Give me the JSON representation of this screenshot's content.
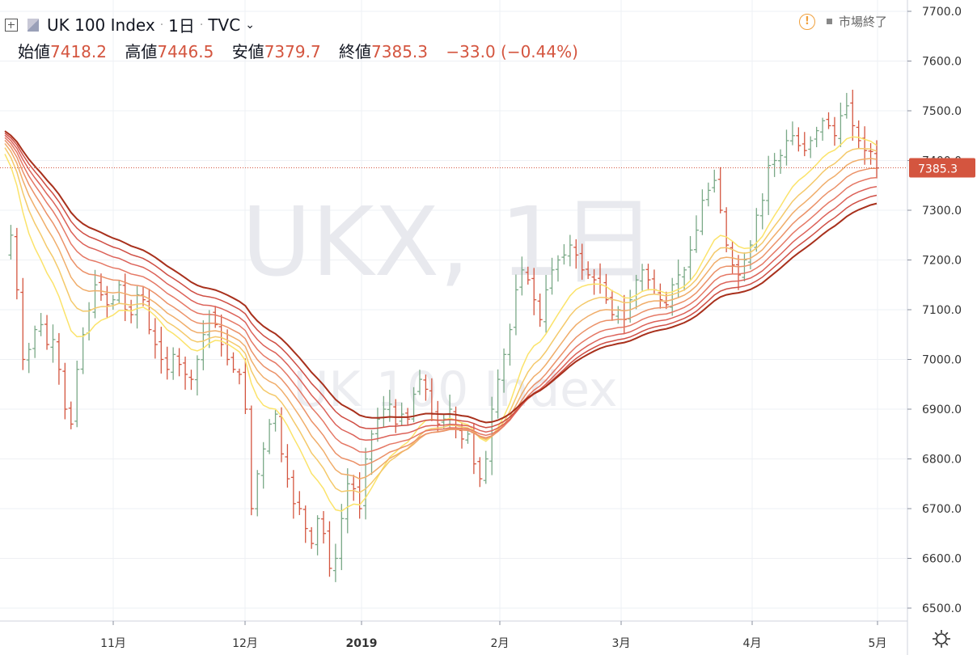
{
  "header": {
    "symbol": "UK 100 Index",
    "interval": "1日",
    "source": "TVC",
    "status": "市場終了",
    "open_label": "始値",
    "open": "7418.2",
    "high_label": "高値",
    "high": "7446.5",
    "low_label": "安値",
    "low": "7379.7",
    "close_label": "終値",
    "close": "7385.3",
    "change": "−33.0 (−0.44%)"
  },
  "watermark": {
    "main": "UKX, 1日",
    "sub": "UK 100 Index"
  },
  "colors": {
    "up": "#7aa987",
    "down": "#d4553f",
    "grid": "#eef0f4",
    "ribbon": [
      "#fbe36a",
      "#f4c96a",
      "#f0ad6a",
      "#eb9168",
      "#e57865",
      "#dc6259",
      "#cf4e44",
      "#a8301c"
    ]
  },
  "chart_data": {
    "type": "candlestick",
    "ylim": [
      6470,
      7720
    ],
    "y_ticks": [
      "7700.0",
      "7600.0",
      "7500.0",
      "7400.0",
      "7300.0",
      "7200.0",
      "7100.0",
      "7000.0",
      "6900.0",
      "6800.0",
      "6700.0",
      "6600.0",
      "6500.0"
    ],
    "x_ticks": [
      "11月",
      "12月",
      "2019",
      "2月",
      "3月",
      "4月",
      "5月"
    ],
    "last_price": "7385.3",
    "last_price_value": 7385.3,
    "price_path": [
      7210,
      7250,
      7140,
      7000,
      7020,
      7060,
      7070,
      7030,
      7040,
      6980,
      6900,
      6870,
      6980,
      7050,
      7100,
      7150,
      7130,
      7110,
      7120,
      7150,
      7100,
      7090,
      7130,
      7120,
      7060,
      7030,
      7000,
      6980,
      7010,
      6990,
      6970,
      6960,
      7000,
      7050,
      7090,
      7070,
      7030,
      7000,
      6980,
      6970,
      6900,
      6700,
      6770,
      6820,
      6870,
      6890,
      6810,
      6760,
      6710,
      6700,
      6660,
      6630,
      6680,
      6650,
      6580,
      6600,
      6680,
      6750,
      6740,
      6700,
      6800,
      6850,
      6880,
      6900,
      6910,
      6870,
      6890,
      6880,
      6930,
      6960,
      6940,
      6890,
      6870,
      6880,
      6900,
      6860,
      6840,
      6850,
      6790,
      6760,
      6800,
      6900,
      6960,
      7010,
      7060,
      7140,
      7180,
      7160,
      7120,
      7080,
      7140,
      7180,
      7200,
      7210,
      7230,
      7210,
      7180,
      7170,
      7160,
      7150,
      7120,
      7090,
      7100,
      7080,
      7120,
      7160,
      7180,
      7160,
      7140,
      7120,
      7110,
      7150,
      7170,
      7180,
      7220,
      7260,
      7320,
      7340,
      7360,
      7300,
      7230,
      7190,
      7170,
      7200,
      7230,
      7290,
      7320,
      7390,
      7400,
      7410,
      7440,
      7450,
      7430,
      7420,
      7440,
      7460,
      7480,
      7470,
      7450,
      7490,
      7510,
      7470,
      7440,
      7420,
      7418,
      7385
    ],
    "ribbon": {
      "period_start": 12,
      "period_step": 5,
      "count": 8,
      "seed_values": [
        7450,
        7470
      ]
    }
  }
}
